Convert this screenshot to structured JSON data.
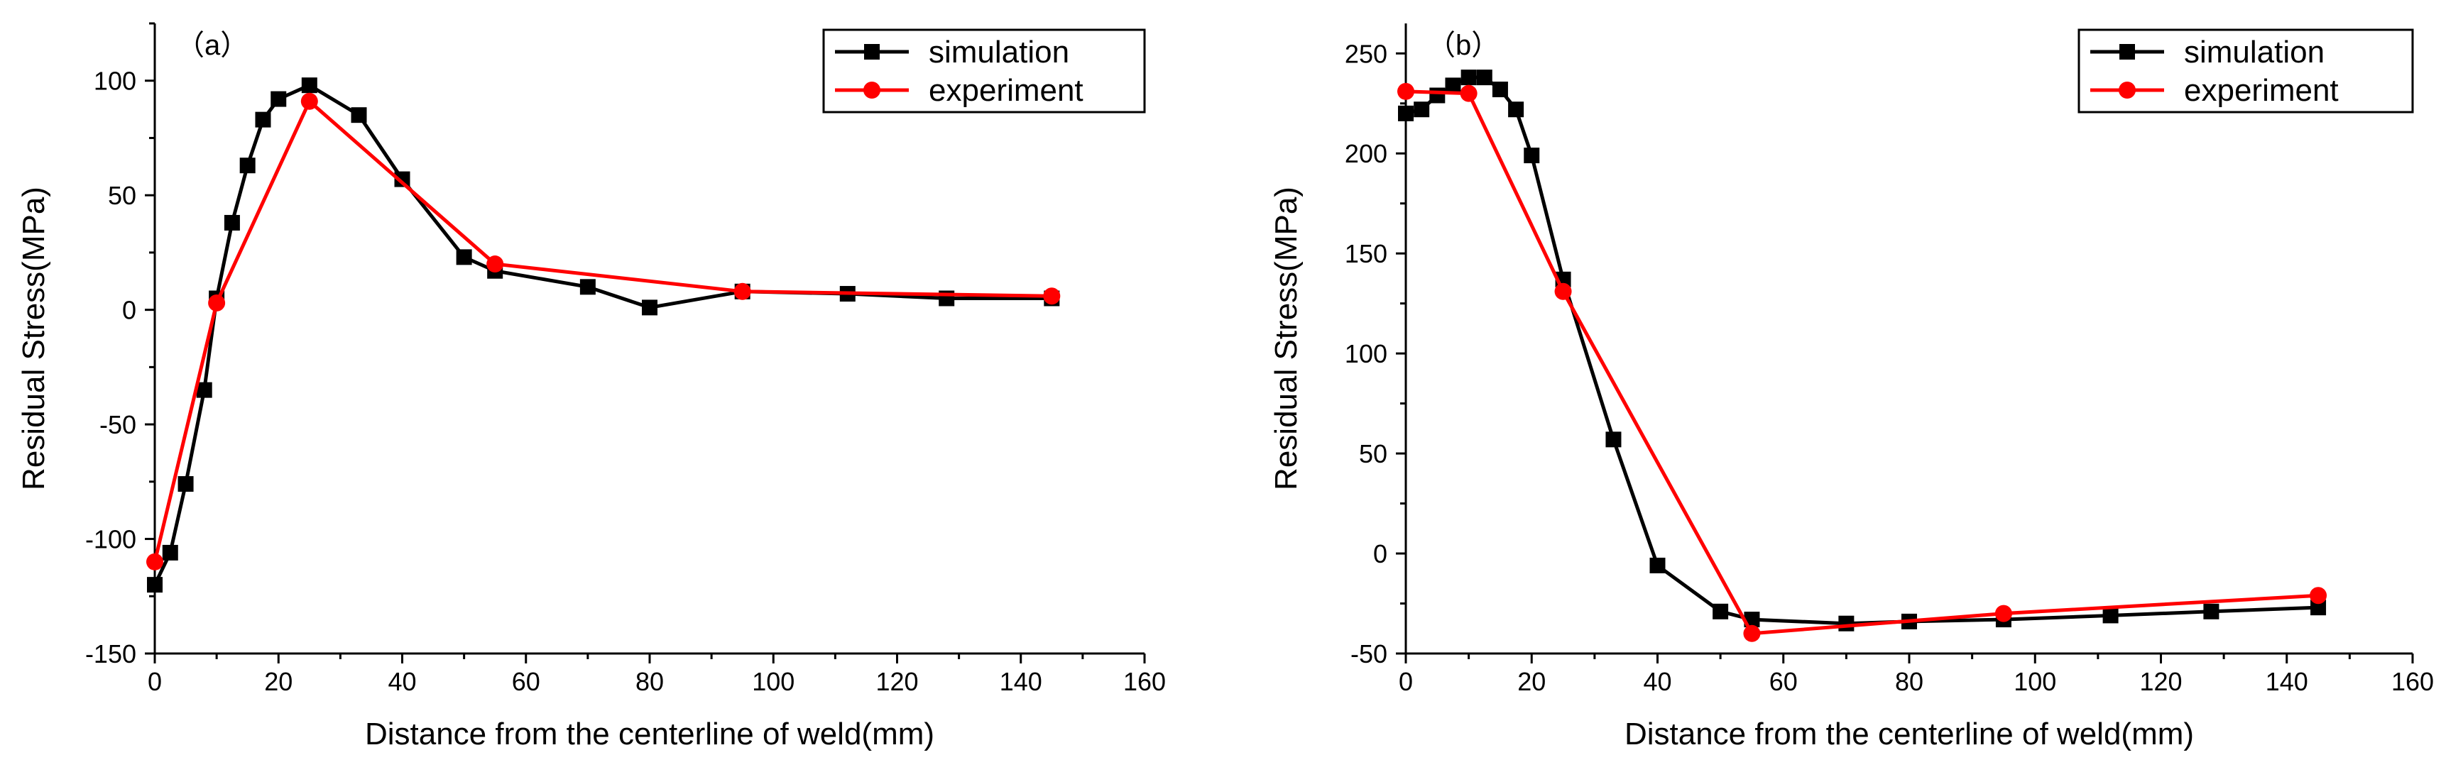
{
  "chart_data": [
    {
      "type": "line",
      "panel_label": "（a）",
      "xlabel": "Distance from the centerline of weld(mm)",
      "ylabel": "Residual Stress(MPa)",
      "xlim": [
        0,
        160
      ],
      "ylim": [
        -150,
        125
      ],
      "xticks": [
        0,
        20,
        40,
        60,
        80,
        100,
        120,
        140,
        160
      ],
      "yticks": [
        -150,
        -100,
        -50,
        0,
        50,
        100
      ],
      "xtick_labels": [
        "0",
        "20",
        "40",
        "60",
        "80",
        "100",
        "120",
        "140",
        "160"
      ],
      "ytick_labels": [
        "-150",
        "-100",
        "-50",
        "0",
        "50",
        "100"
      ],
      "legend_position": "top-right",
      "grid": false,
      "series": [
        {
          "name": "simulation",
          "color": "#000000",
          "marker": "square",
          "x": [
            0,
            2.5,
            5,
            8,
            10,
            12.5,
            15,
            17.5,
            20,
            25,
            33,
            40,
            50,
            55,
            70,
            80,
            95,
            112,
            128,
            145
          ],
          "y": [
            -120,
            -106,
            -76,
            -35,
            5,
            38,
            63,
            83,
            92,
            98,
            85,
            57,
            23,
            17,
            10,
            1,
            8,
            7,
            5,
            5
          ]
        },
        {
          "name": "experiment",
          "color": "#ff0000",
          "marker": "circle",
          "x": [
            0,
            10,
            25,
            55,
            95,
            145
          ],
          "y": [
            -110,
            3,
            91,
            20,
            8,
            6
          ]
        }
      ]
    },
    {
      "type": "line",
      "panel_label": "（b）",
      "xlabel": "Distance from the centerline of weld(mm)",
      "ylabel": "Residual Stress(MPa)",
      "xlim": [
        0,
        160
      ],
      "ylim": [
        -50,
        265
      ],
      "xticks": [
        0,
        20,
        40,
        60,
        80,
        100,
        120,
        140,
        160
      ],
      "yticks": [
        -50,
        0,
        50,
        100,
        150,
        200,
        250
      ],
      "xtick_labels": [
        "0",
        "20",
        "40",
        "60",
        "80",
        "100",
        "120",
        "140",
        "160"
      ],
      "ytick_labels": [
        "-50",
        "0",
        "50",
        "100",
        "150",
        "200",
        "250"
      ],
      "legend_position": "top-right",
      "grid": false,
      "series": [
        {
          "name": "simulation",
          "color": "#000000",
          "marker": "square",
          "x": [
            0,
            2.5,
            5,
            7.5,
            10,
            12.5,
            15,
            17.5,
            20,
            25,
            33,
            40,
            50,
            55,
            70,
            80,
            95,
            112,
            128,
            145
          ],
          "y": [
            220,
            222,
            229,
            234,
            238,
            238,
            232,
            222,
            199,
            137,
            57,
            -6,
            -29,
            -33,
            -35,
            -34,
            -33,
            -31,
            -29,
            -27
          ]
        },
        {
          "name": "experiment",
          "color": "#ff0000",
          "marker": "circle",
          "x": [
            0,
            10,
            25,
            55,
            95,
            145
          ],
          "y": [
            231,
            230,
            131,
            -40,
            -30,
            -21
          ]
        }
      ]
    }
  ]
}
